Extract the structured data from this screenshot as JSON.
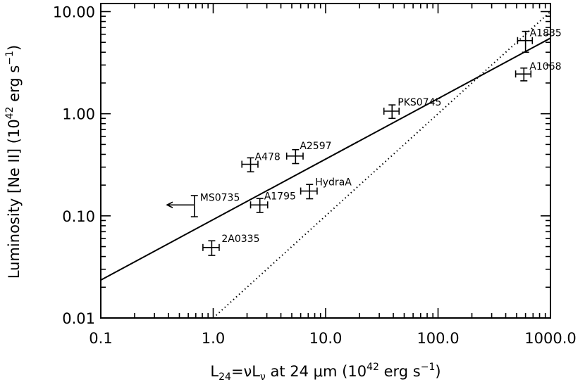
{
  "chart_data": {
    "type": "scatter",
    "title": "",
    "xlabel": {
      "main": "L",
      "sub": "24",
      "expr": "=νL",
      "sub2": "ν",
      "rest": " at 24 μm  (10",
      "exp": "42",
      "unit": " erg s",
      "unit_exp": "−1",
      "close": ")"
    },
    "ylabel": {
      "main": "Luminosity [Ne II]  (10",
      "exp": "42",
      "unit": " erg s",
      "unit_exp": "−1",
      "close": ")"
    },
    "x_scale": "log",
    "y_scale": "log",
    "xlim": [
      0.1,
      1000
    ],
    "ylim": [
      0.01,
      12
    ],
    "x_ticks": [
      {
        "value": 0.1,
        "label": "0.1"
      },
      {
        "value": 1,
        "label": "1.0"
      },
      {
        "value": 10,
        "label": "10.0"
      },
      {
        "value": 100,
        "label": "100.0"
      },
      {
        "value": 1000,
        "label": "1000.0"
      }
    ],
    "y_ticks": [
      {
        "value": 0.01,
        "label": "0.01"
      },
      {
        "value": 0.1,
        "label": "0.10"
      },
      {
        "value": 1,
        "label": "1.00"
      },
      {
        "value": 10,
        "label": "10.00"
      }
    ],
    "grid": false,
    "legend": "none",
    "points": [
      {
        "name": "A1835",
        "x": 600,
        "y": 5.2,
        "xerr": [
          90,
          90
        ],
        "yerr": [
          1.2,
          1.2
        ]
      },
      {
        "name": "A1068",
        "x": 580,
        "y": 2.45,
        "xerr": [
          90,
          90
        ],
        "yerr": [
          0.35,
          0.35
        ]
      },
      {
        "name": "PKS0745",
        "x": 39,
        "y": 1.06,
        "xerr": [
          6,
          6
        ],
        "yerr": [
          0.16,
          0.16
        ]
      },
      {
        "name": "A2597",
        "x": 5.4,
        "y": 0.385,
        "xerr": [
          0.9,
          0.9
        ],
        "yerr": [
          0.06,
          0.06
        ]
      },
      {
        "name": "A478",
        "x": 2.15,
        "y": 0.32,
        "xerr": [
          0.35,
          0.35
        ],
        "yerr": [
          0.05,
          0.05
        ]
      },
      {
        "name": "HydraA",
        "x": 7.2,
        "y": 0.175,
        "xerr": [
          1.2,
          1.2
        ],
        "yerr": [
          0.028,
          0.028
        ]
      },
      {
        "name": "A1795",
        "x": 2.6,
        "y": 0.128,
        "xerr": [
          0.45,
          0.45
        ],
        "yerr": [
          0.02,
          0.02
        ]
      },
      {
        "name": "MS0735",
        "x": 0.68,
        "y": 0.128,
        "xerr": [
          0,
          0
        ],
        "yerr": [
          0.03,
          0.03
        ],
        "upper_limit_x": true
      },
      {
        "name": "2A0335",
        "x": 0.97,
        "y": 0.049,
        "xerr": [
          0.16,
          0.16
        ],
        "yerr": [
          0.008,
          0.008
        ]
      }
    ],
    "lines": [
      {
        "style": "solid",
        "x": [
          0.1,
          1000
        ],
        "y": [
          0.0235,
          5.5
        ]
      },
      {
        "style": "dotted",
        "x": [
          1,
          1000
        ],
        "y": [
          0.01,
          10
        ]
      }
    ]
  }
}
